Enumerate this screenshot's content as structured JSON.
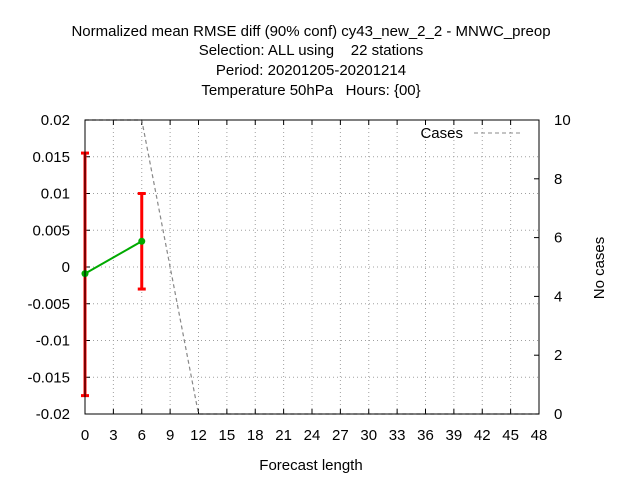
{
  "chart_data": {
    "type": "line",
    "title_lines": [
      "Normalized mean RMSE diff (90% conf) cy43_new_2_2 - MNWC_preop",
      "Selection: ALL using    22 stations",
      "Period: 20201205-20201214",
      "Temperature 50hPa   Hours: {00}"
    ],
    "xlabel": "Forecast length",
    "y2label": "No cases",
    "xlim": [
      0,
      48
    ],
    "ylim": [
      -0.02,
      0.02
    ],
    "y2lim": [
      0,
      10
    ],
    "x_ticks": [
      0,
      3,
      6,
      9,
      12,
      15,
      18,
      21,
      24,
      27,
      30,
      33,
      36,
      39,
      42,
      45,
      48
    ],
    "y_ticks": [
      0.02,
      0.015,
      0.01,
      0.005,
      0,
      -0.005,
      -0.01,
      -0.015,
      -0.02
    ],
    "y_tick_labels": [
      "0.02",
      "0.015",
      "0.01",
      "0.005",
      "0",
      "-0.005",
      "-0.01",
      "-0.015",
      "-0.02"
    ],
    "y2_ticks": [
      10,
      8,
      6,
      4,
      2,
      0
    ],
    "grid": true,
    "legend": {
      "placement": "top-right",
      "label": "Cases"
    },
    "series": [
      {
        "axis": "y",
        "color": "#00aa00",
        "x": [
          0,
          6
        ],
        "y": [
          -0.0009,
          0.0035
        ],
        "err_low": [
          -0.0175,
          -0.003
        ],
        "err_high": [
          0.0155,
          0.01
        ],
        "err_color": "#ff0000"
      },
      {
        "name": "Cases",
        "axis": "y2",
        "color": "#888888",
        "style": "dashed",
        "x": [
          0,
          6,
          12,
          48
        ],
        "y": [
          10,
          10,
          0,
          0
        ]
      }
    ]
  }
}
